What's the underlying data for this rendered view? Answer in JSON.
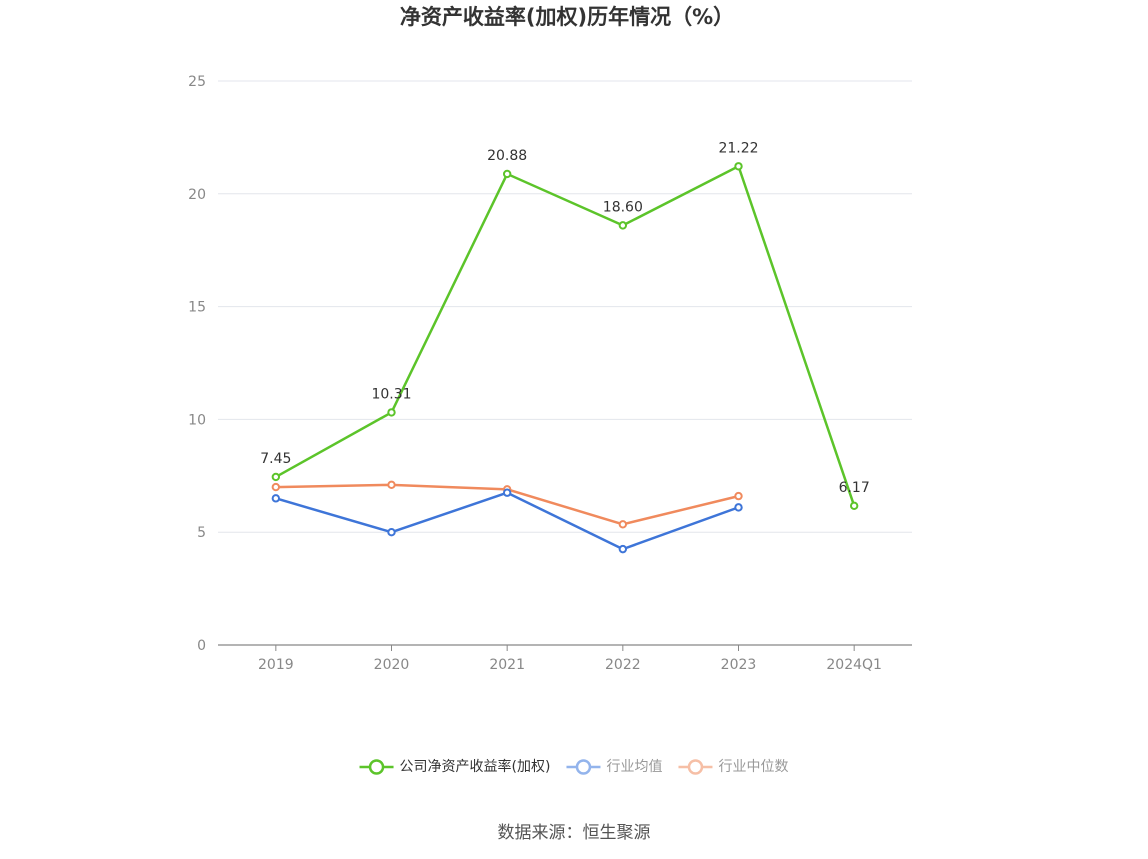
{
  "chart_data": {
    "type": "line",
    "title": "净资产收益率(加权)历年情况（%）",
    "categories": [
      "2019",
      "2020",
      "2021",
      "2022",
      "2023",
      "2024Q1"
    ],
    "ylim": [
      0,
      25
    ],
    "yticks": [
      0,
      5,
      10,
      15,
      20,
      25
    ],
    "grid": true,
    "legend_position": "bottom",
    "series": [
      {
        "name": "公司净资产收益率(加权)",
        "values": [
          7.45,
          10.31,
          20.88,
          18.6,
          21.22,
          6.17
        ],
        "labels": [
          "7.45",
          "10.31",
          "20.88",
          "18.60",
          "21.22",
          "6.17"
        ],
        "color": "#5cc42a",
        "legend_text_color": "#333333"
      },
      {
        "name": "行业均值",
        "values": [
          6.5,
          5.0,
          6.75,
          4.25,
          6.1,
          null
        ],
        "color": "#3e75d8",
        "legend_marker_color": "#93b4ec",
        "legend_text_color": "#999999"
      },
      {
        "name": "行业中位数",
        "values": [
          7.0,
          7.1,
          6.9,
          5.35,
          6.6,
          null
        ],
        "color": "#f08a5d",
        "legend_marker_color": "#f6bfa6",
        "legend_text_color": "#999999"
      }
    ]
  },
  "source_text": "数据来源：恒生聚源"
}
